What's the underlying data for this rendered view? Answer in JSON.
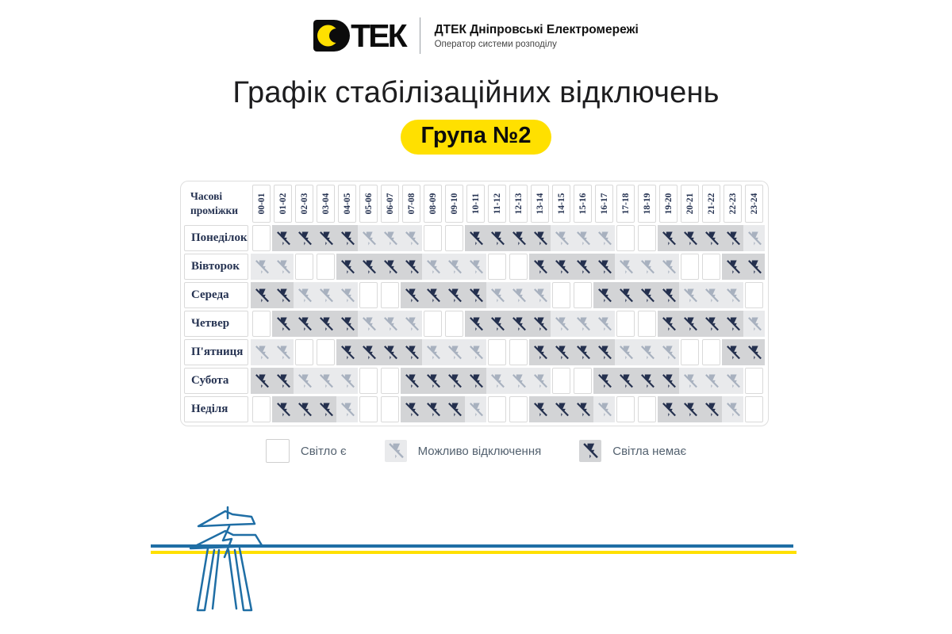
{
  "brand": {
    "logo_text": "ДТЕК",
    "logo_tail": "ТЕК",
    "company": "ДТЕК Дніпровські Електромережі",
    "tagline": "Оператор системи розподілу"
  },
  "chart_data": {
    "type": "heatmap",
    "title": "Графік стабілізаційних відключень",
    "group": "Група №2",
    "corner_label": "Часові проміжки",
    "x_categories": [
      "00-01",
      "01-02",
      "02-03",
      "03-04",
      "04-05",
      "05-06",
      "06-07",
      "07-08",
      "08-09",
      "09-10",
      "10-11",
      "11-12",
      "12-13",
      "13-14",
      "14-15",
      "15-16",
      "16-17",
      "17-18",
      "18-19",
      "19-20",
      "20-21",
      "21-22",
      "22-23",
      "23-24"
    ],
    "y_categories": [
      "Понеділок",
      "Вівторок",
      "Середа",
      "Четвер",
      "П'ятниця",
      "Субота",
      "Неділя"
    ],
    "states": {
      "0": "Світло є",
      "1": "Можливо відключення",
      "2": "Світла немає"
    },
    "values": [
      [
        0,
        2,
        2,
        2,
        2,
        1,
        1,
        1,
        0,
        0,
        2,
        2,
        2,
        2,
        1,
        1,
        1,
        0,
        0,
        2,
        2,
        2,
        2,
        1
      ],
      [
        1,
        1,
        0,
        0,
        2,
        2,
        2,
        2,
        1,
        1,
        1,
        0,
        0,
        2,
        2,
        2,
        2,
        1,
        1,
        1,
        0,
        0,
        2,
        2
      ],
      [
        2,
        2,
        1,
        1,
        1,
        0,
        0,
        2,
        2,
        2,
        2,
        1,
        1,
        1,
        0,
        0,
        2,
        2,
        2,
        2,
        1,
        1,
        1,
        0
      ],
      [
        0,
        2,
        2,
        2,
        2,
        1,
        1,
        1,
        0,
        0,
        2,
        2,
        2,
        2,
        1,
        1,
        1,
        0,
        0,
        2,
        2,
        2,
        2,
        1
      ],
      [
        1,
        1,
        0,
        0,
        2,
        2,
        2,
        2,
        1,
        1,
        1,
        0,
        0,
        2,
        2,
        2,
        2,
        1,
        1,
        1,
        0,
        0,
        2,
        2
      ],
      [
        2,
        2,
        1,
        1,
        1,
        0,
        0,
        2,
        2,
        2,
        2,
        1,
        1,
        1,
        0,
        0,
        2,
        2,
        2,
        2,
        1,
        1,
        1,
        0
      ],
      [
        0,
        2,
        2,
        2,
        1,
        0,
        0,
        2,
        2,
        2,
        1,
        0,
        0,
        2,
        2,
        2,
        1,
        0,
        0,
        2,
        2,
        2,
        1,
        0
      ]
    ]
  },
  "legend": [
    {
      "state": "on",
      "code": 0,
      "label": "Світло є"
    },
    {
      "state": "maybe",
      "code": 1,
      "label": "Можливо відключення"
    },
    {
      "state": "off",
      "code": 2,
      "label": "Світла немає"
    }
  ],
  "colors": {
    "brand_yellow": "#ffe000",
    "navy_icon": "#24304e",
    "maybe_icon": "#a8b1bf",
    "cell_off_bg": "#d3d4d6",
    "cell_maybe_bg": "#e9eaec",
    "line_blue": "#1f6ea5",
    "line_yellow": "#ffe000"
  }
}
